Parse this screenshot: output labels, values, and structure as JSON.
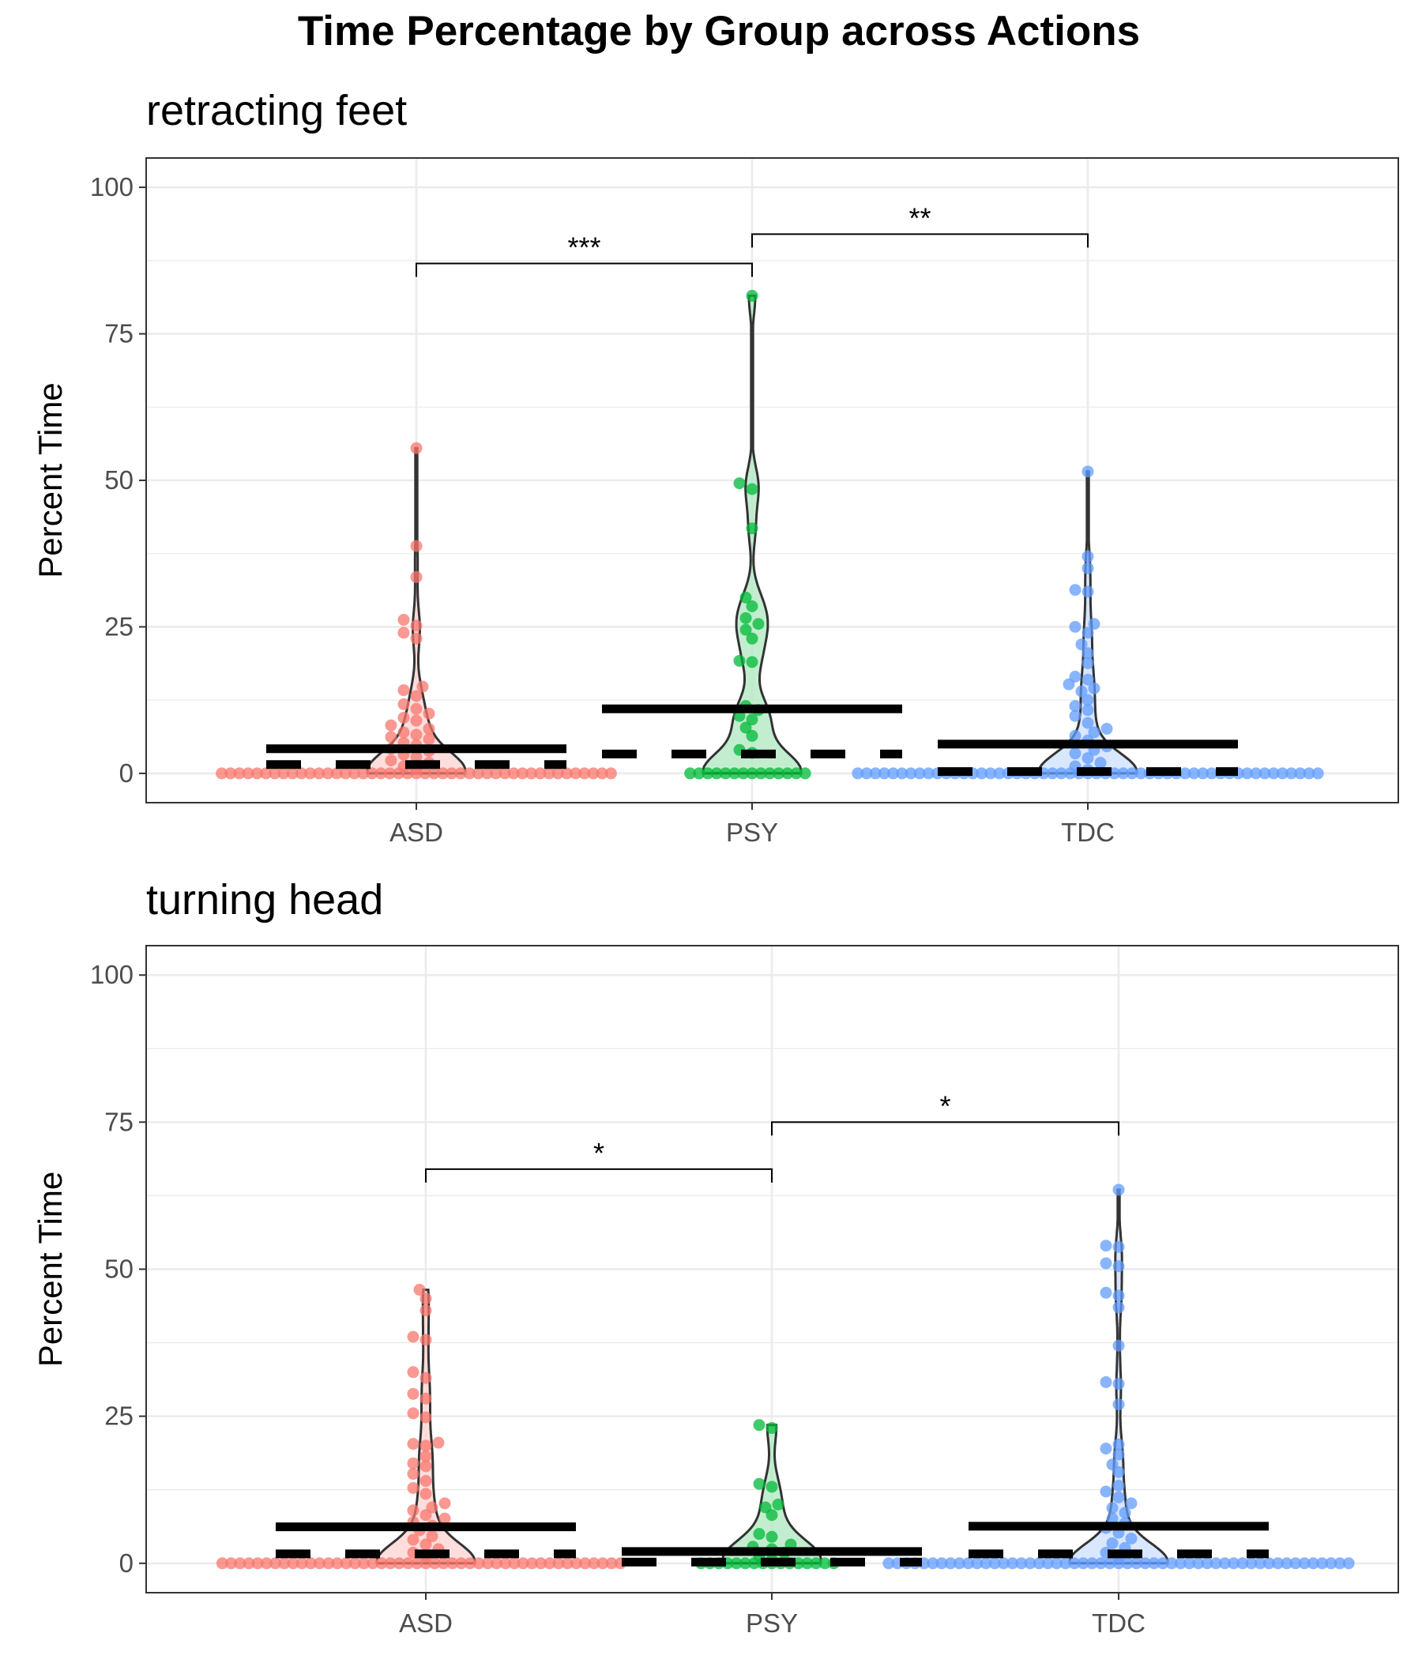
{
  "chart_data": {
    "type": "violin",
    "title": "Time Percentage by Group across Actions",
    "groups": [
      "ASD",
      "PSY",
      "TDC"
    ],
    "colors": {
      "ASD": "#F8766D",
      "PSY": "#00BA38",
      "TDC": "#619CFF"
    },
    "ylabel": "Percent Time",
    "ylim": [
      -5,
      105
    ],
    "yticks": [
      0,
      25,
      50,
      75,
      100
    ],
    "grid": true,
    "legend": "none",
    "panels": [
      {
        "title": "retracting feet",
        "ylabel": "Percent Time",
        "means": {
          "ASD": 4.2,
          "PSY": 11.0,
          "TDC": 5.0
        },
        "medians": {
          "ASD": 1.5,
          "PSY": 3.3,
          "TDC": 0.3
        },
        "maxima": {
          "ASD": 55.5,
          "PSY": 81.5,
          "TDC": 51.5
        },
        "points": {
          "ASD": [
            55.5,
            38.8,
            33.5,
            26.2,
            25.2,
            24.0,
            23.0,
            14.8,
            14.2,
            13.2,
            11.8,
            11.0,
            10.2,
            9.5,
            9.0,
            8.2,
            7.6,
            7.0,
            6.6,
            6.2,
            5.8,
            5.2,
            4.8,
            4.2,
            3.8,
            3.2,
            2.8,
            2.2,
            1.8,
            1.2,
            0.8
          ],
          "PSY": [
            81.5,
            49.5,
            48.5,
            41.8,
            30.0,
            28.5,
            26.5,
            25.5,
            24.5,
            23.0,
            19.2,
            19.0,
            11.5,
            10.8,
            9.8,
            9.2,
            7.8,
            6.4,
            4.0,
            3.5
          ],
          "TDC": [
            51.5,
            37.0,
            35.0,
            31.3,
            31.0,
            25.5,
            25.0,
            24.0,
            22.0,
            20.5,
            18.8,
            16.5,
            16.0,
            15.2,
            14.5,
            14.0,
            12.5,
            11.5,
            10.8,
            9.8,
            8.6,
            7.6,
            7.0,
            6.4,
            5.6,
            4.6,
            4.0,
            3.4,
            2.6,
            1.8,
            1.2,
            0.6
          ]
        },
        "zero_counts": {
          "ASD": 45,
          "PSY": 14,
          "TDC": 53
        },
        "comparisons": [
          {
            "from": "ASD",
            "to": "PSY",
            "y": 87,
            "label": "***"
          },
          {
            "from": "PSY",
            "to": "TDC",
            "y": 92,
            "label": "**"
          }
        ]
      },
      {
        "title": "turning head",
        "ylabel": "Percent Time",
        "means": {
          "ASD": 6.2,
          "PSY": 2.0,
          "TDC": 6.3
        },
        "medians": {
          "ASD": 1.6,
          "PSY": 0.2,
          "TDC": 1.6
        },
        "maxima": {
          "ASD": 46.5,
          "PSY": 23.5,
          "TDC": 63.5
        },
        "points": {
          "ASD": [
            46.5,
            45.0,
            43.0,
            38.5,
            38.0,
            32.5,
            31.5,
            28.8,
            28.0,
            25.5,
            24.8,
            20.5,
            20.3,
            20.0,
            18.2,
            17.0,
            16.5,
            15.2,
            14.0,
            12.8,
            11.8,
            10.2,
            9.5,
            9.0,
            8.2,
            7.6,
            7.0,
            6.4,
            5.6,
            4.6,
            4.0,
            3.2,
            2.4,
            1.8,
            1.2
          ],
          "PSY": [
            23.5,
            23.0,
            13.5,
            13.0,
            10.0,
            9.5,
            8.2,
            5.0,
            4.5,
            3.2,
            2.8,
            2.4,
            1.8,
            1.2,
            0.6
          ],
          "TDC": [
            63.5,
            54.0,
            53.8,
            51.0,
            50.5,
            46.0,
            45.5,
            43.5,
            37.0,
            30.8,
            30.5,
            27.0,
            20.2,
            19.5,
            18.5,
            16.8,
            15.5,
            13.2,
            12.2,
            11.2,
            10.2,
            9.4,
            8.6,
            7.6,
            6.8,
            6.0,
            5.2,
            4.2,
            3.4,
            2.6,
            1.8,
            1.0
          ]
        },
        "zero_counts": {
          "ASD": 46,
          "PSY": 16,
          "TDC": 53
        },
        "comparisons": [
          {
            "from": "ASD",
            "to": "PSY",
            "y": 67,
            "label": "*"
          },
          {
            "from": "PSY",
            "to": "TDC",
            "y": 75,
            "label": "*"
          }
        ]
      }
    ]
  }
}
